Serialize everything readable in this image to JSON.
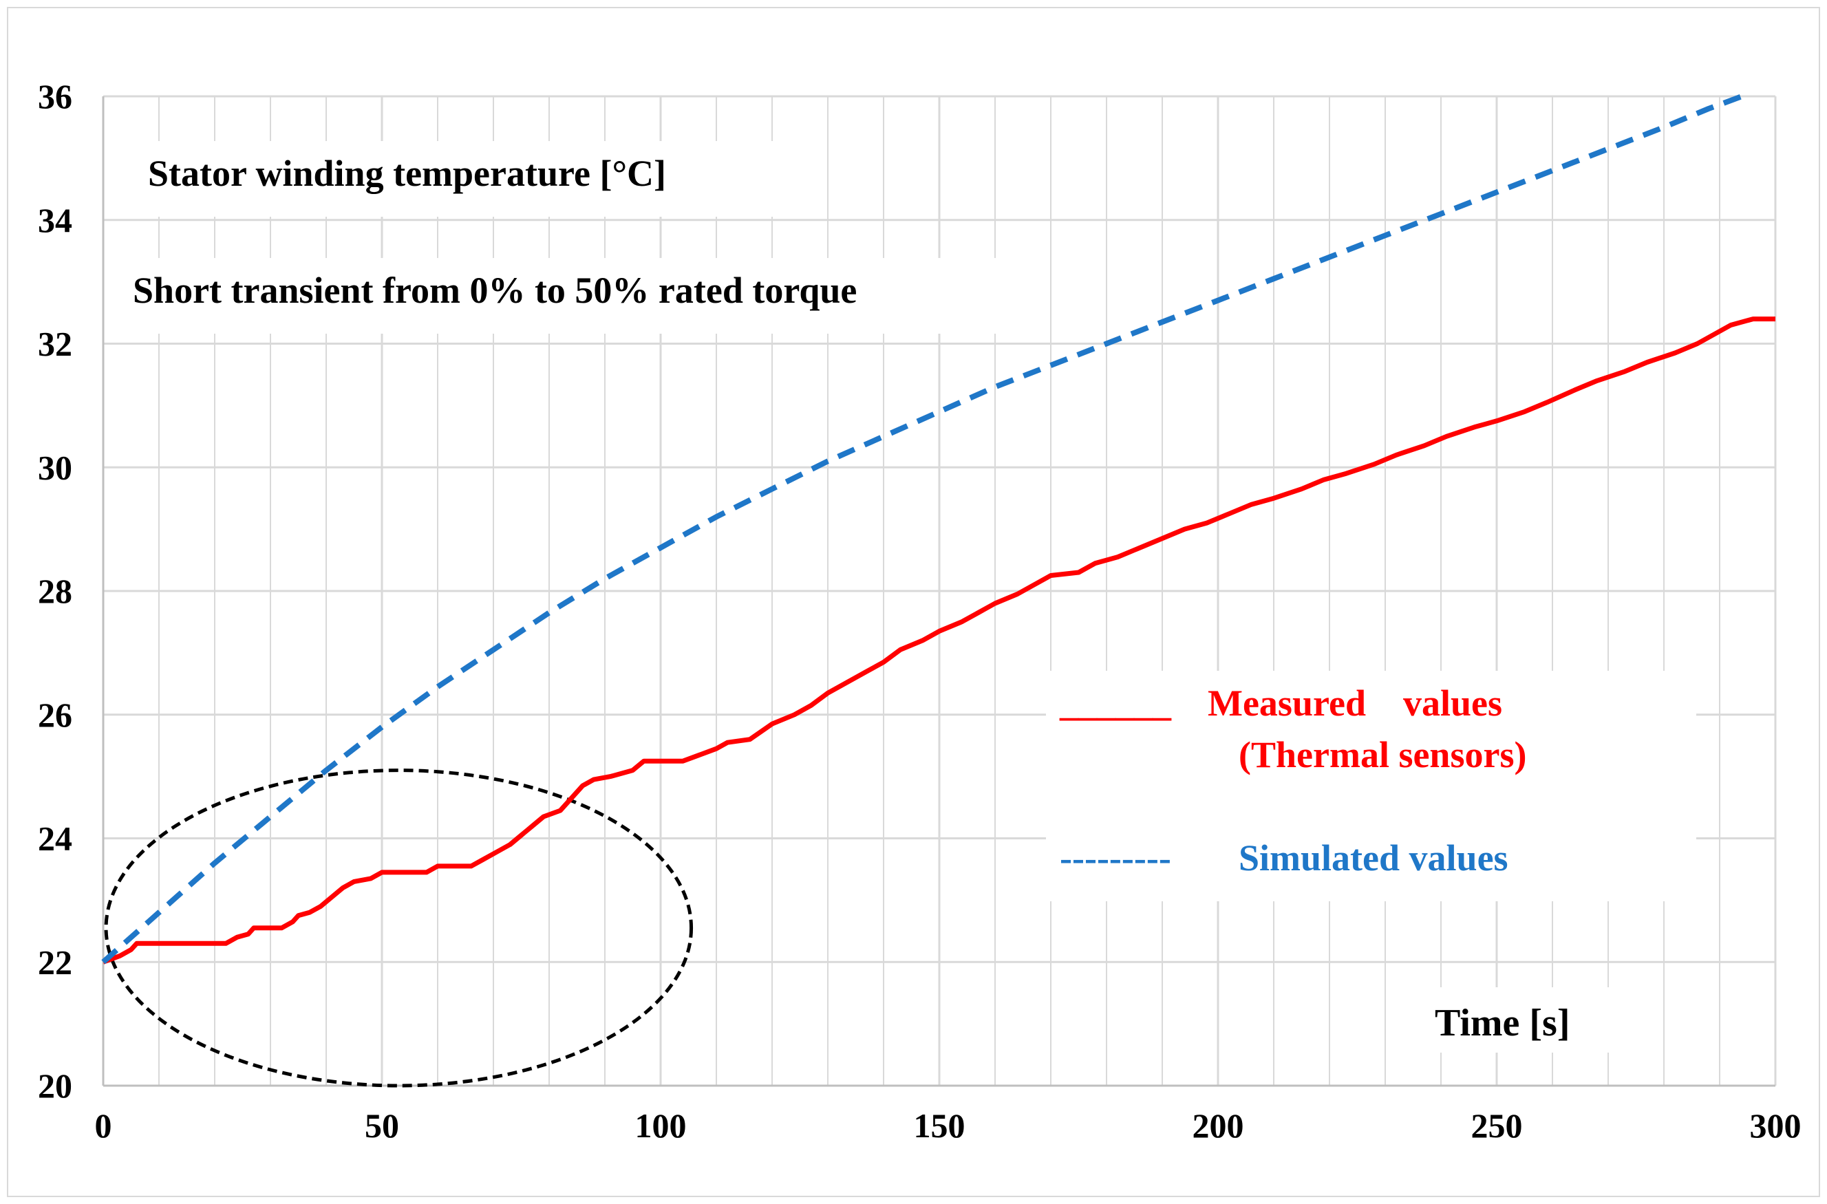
{
  "chart_data": {
    "type": "line",
    "title": "Stator winding temperature [°C]",
    "subtitle": "Short transient from 0% to 50% rated torque",
    "xlabel": "Time [s]",
    "ylabel": "",
    "xlim": [
      0,
      300
    ],
    "ylim": [
      20,
      36
    ],
    "x_ticks": [
      "0",
      "50",
      "100",
      "150",
      "200",
      "250",
      "300"
    ],
    "y_ticks": [
      "20",
      "22",
      "24",
      "26",
      "28",
      "30",
      "32",
      "34",
      "36"
    ],
    "grid": "on",
    "legend_position": "right-center",
    "legend": {
      "measured_sample": "______",
      "measured_line1": "Measured    values",
      "measured_line2": "(Thermal sensors)",
      "simulated_sample": "---------",
      "simulated_label": "Simulated values"
    },
    "annotation": "dashed-ellipse",
    "series": [
      {
        "name": "Measured    values (Thermal sensors)",
        "color": "#ff0000",
        "style": "solid",
        "points": [
          [
            0,
            22.0
          ],
          [
            3,
            22.1
          ],
          [
            5,
            22.2
          ],
          [
            6,
            22.3
          ],
          [
            22,
            22.3
          ],
          [
            24,
            22.4
          ],
          [
            26,
            22.45
          ],
          [
            27,
            22.55
          ],
          [
            32,
            22.55
          ],
          [
            34,
            22.65
          ],
          [
            35,
            22.75
          ],
          [
            37,
            22.8
          ],
          [
            39,
            22.9
          ],
          [
            41,
            23.05
          ],
          [
            43,
            23.2
          ],
          [
            45,
            23.3
          ],
          [
            48,
            23.35
          ],
          [
            50,
            23.45
          ],
          [
            58,
            23.45
          ],
          [
            60,
            23.55
          ],
          [
            66,
            23.55
          ],
          [
            68,
            23.65
          ],
          [
            71,
            23.8
          ],
          [
            73,
            23.9
          ],
          [
            75,
            24.05
          ],
          [
            77,
            24.2
          ],
          [
            79,
            24.35
          ],
          [
            82,
            24.45
          ],
          [
            84,
            24.65
          ],
          [
            86,
            24.85
          ],
          [
            88,
            24.95
          ],
          [
            91,
            25.0
          ],
          [
            95,
            25.1
          ],
          [
            97,
            25.25
          ],
          [
            104,
            25.25
          ],
          [
            107,
            25.35
          ],
          [
            110,
            25.45
          ],
          [
            112,
            25.55
          ],
          [
            116,
            25.6
          ],
          [
            120,
            25.85
          ],
          [
            124,
            26.0
          ],
          [
            127,
            26.15
          ],
          [
            130,
            26.35
          ],
          [
            133,
            26.5
          ],
          [
            137,
            26.7
          ],
          [
            140,
            26.85
          ],
          [
            143,
            27.05
          ],
          [
            147,
            27.2
          ],
          [
            150,
            27.35
          ],
          [
            154,
            27.5
          ],
          [
            157,
            27.65
          ],
          [
            160,
            27.8
          ],
          [
            164,
            27.95
          ],
          [
            167,
            28.1
          ],
          [
            170,
            28.25
          ],
          [
            175,
            28.3
          ],
          [
            178,
            28.45
          ],
          [
            182,
            28.55
          ],
          [
            186,
            28.7
          ],
          [
            190,
            28.85
          ],
          [
            194,
            29.0
          ],
          [
            198,
            29.1
          ],
          [
            202,
            29.25
          ],
          [
            206,
            29.4
          ],
          [
            210,
            29.5
          ],
          [
            215,
            29.65
          ],
          [
            219,
            29.8
          ],
          [
            223,
            29.9
          ],
          [
            228,
            30.05
          ],
          [
            232,
            30.2
          ],
          [
            237,
            30.35
          ],
          [
            241,
            30.5
          ],
          [
            246,
            30.65
          ],
          [
            250,
            30.75
          ],
          [
            255,
            30.9
          ],
          [
            259,
            31.05
          ],
          [
            264,
            31.25
          ],
          [
            268,
            31.4
          ],
          [
            273,
            31.55
          ],
          [
            277,
            31.7
          ],
          [
            282,
            31.85
          ],
          [
            286,
            32.0
          ],
          [
            289,
            32.15
          ],
          [
            292,
            32.3
          ],
          [
            296,
            32.4
          ],
          [
            300,
            32.4
          ]
        ]
      },
      {
        "name": "Simulated values",
        "color": "#1f77c8",
        "style": "dashed",
        "points": [
          [
            0,
            22.0
          ],
          [
            10,
            22.8
          ],
          [
            20,
            23.6
          ],
          [
            30,
            24.35
          ],
          [
            40,
            25.1
          ],
          [
            50,
            25.8
          ],
          [
            60,
            26.45
          ],
          [
            70,
            27.05
          ],
          [
            80,
            27.65
          ],
          [
            90,
            28.2
          ],
          [
            100,
            28.7
          ],
          [
            110,
            29.2
          ],
          [
            120,
            29.65
          ],
          [
            130,
            30.1
          ],
          [
            140,
            30.5
          ],
          [
            150,
            30.9
          ],
          [
            160,
            31.3
          ],
          [
            170,
            31.65
          ],
          [
            180,
            32.0
          ],
          [
            190,
            32.35
          ],
          [
            200,
            32.7
          ],
          [
            210,
            33.05
          ],
          [
            220,
            33.4
          ],
          [
            230,
            33.75
          ],
          [
            240,
            34.1
          ],
          [
            250,
            34.45
          ],
          [
            260,
            34.8
          ],
          [
            270,
            35.15
          ],
          [
            280,
            35.5
          ],
          [
            288,
            35.8
          ],
          [
            294,
            36.0
          ]
        ]
      }
    ]
  }
}
